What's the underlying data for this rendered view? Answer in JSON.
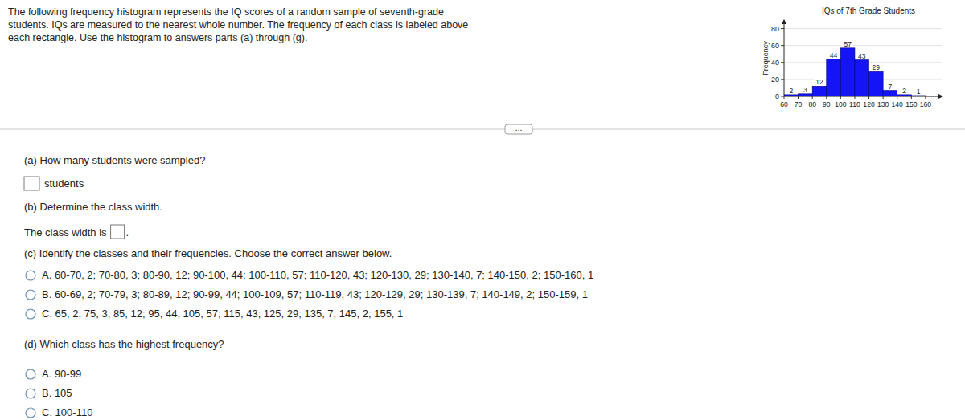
{
  "intro_lines": [
    "The following frequency histogram represents the IQ scores of a random sample of seventh-grade",
    "students. IQs are measured to the nearest whole number. The frequency of each class is labeled above",
    "each rectangle. Use the histogram to answers parts (a) through (g)."
  ],
  "button": "...",
  "part_a": {
    "question": "(a) How many students were sampled?",
    "unit": "students"
  },
  "part_b": {
    "question": "(b) Determine the class width.",
    "prompt": "The class width is",
    "end": "."
  },
  "part_c": {
    "question": "(c) Identify the classes and their frequencies. Choose the correct answer below.",
    "options": [
      "A. 60-70, 2; 70-80, 3; 80-90, 12; 90-100, 44; 100-110, 57; 110-120, 43; 120-130, 29; 130-140, 7; 140-150, 2; 150-160, 1",
      "B. 60-69, 2; 70-79, 3; 80-89, 12; 90-99, 44; 100-109, 57; 110-119, 43; 120-129, 29; 130-139, 7; 140-149, 2; 150-159, 1",
      "C. 65, 2; 75, 3; 85, 12; 95, 44; 105, 57; 115, 43; 125, 29; 135, 7; 145, 2; 155, 1"
    ]
  },
  "part_d": {
    "question": "(d) Which class has the highest frequency?",
    "options": [
      "A. 90-99",
      "B. 105",
      "C. 100-110"
    ]
  },
  "chart_data": {
    "type": "histogram",
    "title": "IQs of 7th Grade Students",
    "y_label": "Frequency",
    "bins": [
      60,
      70,
      80,
      90,
      100,
      110,
      120,
      130,
      140,
      150,
      160
    ],
    "values": [
      2,
      3,
      12,
      44,
      57,
      43,
      29,
      7,
      2,
      1
    ],
    "color": "#1414f5",
    "xlim": [
      60,
      172
    ],
    "ylim": [
      0,
      90
    ],
    "xticks": [
      60,
      70,
      80,
      90,
      100,
      110,
      120,
      130,
      140,
      150,
      160
    ],
    "yticks": [
      0,
      20,
      40,
      60,
      80
    ],
    "grid": true,
    "data_labels": true
  }
}
